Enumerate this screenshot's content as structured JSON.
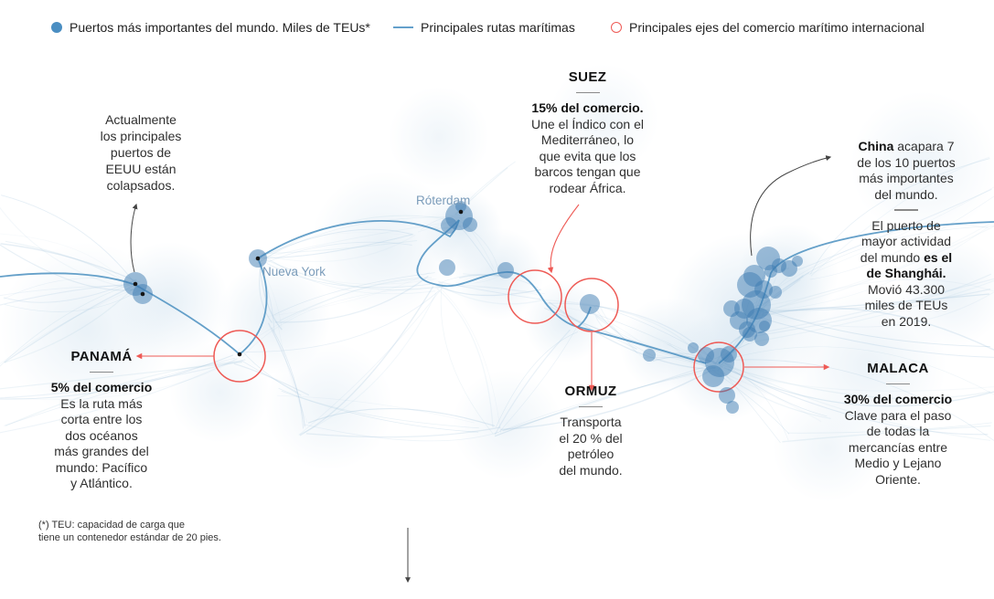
{
  "legend": {
    "items": [
      {
        "icon": "port-dot",
        "label": "Puertos más importantes del mundo. Miles de TEUs*"
      },
      {
        "icon": "route-line",
        "label": "Principales rutas marítimas"
      },
      {
        "icon": "axis-circle",
        "label": "Principales ejes del comercio marítimo internacional"
      }
    ]
  },
  "colors": {
    "port_bubble": "#3e7cb2",
    "route_line": "#4a8fc0",
    "web_line": "#96bcd8",
    "accent_red": "#ee5a55",
    "map_label": "#7b9cba",
    "arrow_black": "#444444"
  },
  "annotations": {
    "usa": {
      "text": "Actualmente\nlos principales\npuertos de\nEEUU están\ncolapsados."
    },
    "suez": {
      "title": "SUEZ",
      "lead": "15% del comercio.",
      "body": "Une el Índico con el\nMediterráneo, lo\nque evita que los\nbarcos tengan que\nrodear África."
    },
    "china": {
      "bold1": "China",
      "text1": " acapara 7\nde los 10 puertos\nmás importantes\ndel mundo.",
      "text2a": "El puerto de\nmayor actividad\ndel mundo ",
      "bold2": "es el\nde Shanghái.",
      "text2b": "\nMovió 43.300\nmiles de TEUs\nen 2019."
    },
    "panama": {
      "title": "PANAMÁ",
      "lead": "5% del comercio",
      "body": "Es la ruta más\ncorta entre los\ndos océanos\nmás grandes del\nmundo: Pacífico\ny Atlántico."
    },
    "ormuz": {
      "title": "ORMUZ",
      "body": "Transporta\nel 20 % del\npetróleo\ndel mundo."
    },
    "malaca": {
      "title": "MALACA",
      "lead": "30% del comercio",
      "body": "Clave para el paso\nde todas la\nmercancías entre\nMedio y Lejano\nOriente."
    }
  },
  "map_labels": [
    {
      "text": "Róterdam"
    },
    {
      "text": "Nueva York"
    }
  ],
  "footnote": "(*) TEU: capacidad de carga que\ntiene un contenedor estándar de 20 pies.",
  "map": {
    "ports": [
      [
        148,
        311,
        13
      ],
      [
        156,
        322,
        11
      ],
      [
        282,
        283,
        10
      ],
      [
        502,
        237,
        15
      ],
      [
        491,
        247,
        9
      ],
      [
        514,
        246,
        8
      ],
      [
        504,
        226,
        6
      ],
      [
        489,
        293,
        9
      ],
      [
        553,
        296,
        9
      ],
      [
        645,
        333,
        11
      ],
      [
        710,
        389,
        7
      ],
      [
        758,
        381,
        6
      ],
      [
        772,
        389,
        9
      ],
      [
        787,
        397,
        16
      ],
      [
        780,
        412,
        12
      ],
      [
        797,
        388,
        9
      ],
      [
        795,
        433,
        9
      ],
      [
        801,
        446,
        7
      ],
      [
        820,
        366,
        8
      ],
      [
        836,
        357,
        6
      ],
      [
        840,
        283,
        13
      ],
      [
        852,
        291,
        8
      ],
      [
        825,
        302,
        12
      ],
      [
        843,
        297,
        7
      ],
      [
        820,
        312,
        14
      ],
      [
        835,
        317,
        10
      ],
      [
        848,
        320,
        7
      ],
      [
        827,
        334,
        16
      ],
      [
        814,
        338,
        11
      ],
      [
        800,
        338,
        9
      ],
      [
        808,
        351,
        10
      ],
      [
        830,
        351,
        14
      ],
      [
        817,
        361,
        9
      ],
      [
        833,
        371,
        8
      ],
      [
        863,
        294,
        9
      ],
      [
        872,
        286,
        6
      ]
    ],
    "port_dots": [
      [
        148,
        311
      ],
      [
        156,
        322
      ],
      [
        282,
        283
      ],
      [
        504,
        232
      ],
      [
        262,
        388
      ]
    ],
    "chokepoints": [
      [
        262,
        390,
        28
      ],
      [
        585,
        325,
        29
      ],
      [
        647,
        334,
        29
      ],
      [
        786,
        402,
        27
      ]
    ],
    "routes": [
      "M0,303 C60,296 112,299 148,312",
      "M148,312 C185,333 228,358 262,388",
      "M262,388 C294,362 299,322 282,283",
      "M282,283 C362,232 450,234 492,259 C498,252 500,247 502,241",
      "M502,241 C481,262 463,272 458,289 C452,302 463,309 479,312 C502,318 521,301 553,298 C571,297 581,309 590,322",
      "M590,322 C601,341 618,355 632,358 C690,373 734,387 772,398",
      "M632,358 C640,352 644,343 646,336",
      "M786,398 C806,382 820,362 828,344 C834,329 839,314 843,299 C858,272 950,248 1087,243"
    ],
    "black_arrows": [
      "M147,298 C141,276 142,246 149,224",
      "M822,280 C816,235 830,205 860,190 C880,180 895,175 908,172",
      "M446,578 L446,637"
    ],
    "red_arrows": [
      "M234,390 L150,390",
      "M633,224 C608,256 599,278 603,298",
      "M647,364 L647,427",
      "M814,402 L906,402"
    ],
    "clusters": [
      [
        505,
        252,
        45,
        0.6
      ],
      [
        545,
        300,
        50,
        0.55
      ],
      [
        300,
        348,
        62,
        0.5
      ],
      [
        818,
        345,
        90,
        0.65
      ],
      [
        790,
        402,
        60,
        0.6
      ],
      [
        730,
        378,
        52,
        0.5
      ],
      [
        420,
        268,
        80,
        0.45
      ],
      [
        185,
        330,
        65,
        0.5
      ],
      [
        862,
        300,
        55,
        0.55
      ],
      [
        618,
        352,
        45,
        0.5
      ],
      [
        95,
        360,
        95,
        0.45
      ],
      [
        950,
        400,
        85,
        0.4
      ],
      [
        360,
        445,
        70,
        0.35
      ],
      [
        555,
        465,
        60,
        0.35
      ],
      [
        1010,
        180,
        80,
        0.35
      ],
      [
        660,
        130,
        60,
        0.3
      ],
      [
        905,
        490,
        60,
        0.3
      ],
      [
        240,
        430,
        55,
        0.35
      ],
      [
        480,
        150,
        55,
        0.3
      ],
      [
        1040,
        320,
        60,
        0.4
      ]
    ],
    "web_links": [
      [
        150,
        312,
        0,
        260,
        4
      ],
      [
        150,
        312,
        0,
        330,
        5
      ],
      [
        152,
        315,
        0,
        400,
        4
      ],
      [
        262,
        390,
        0,
        430,
        4
      ],
      [
        262,
        390,
        0,
        470,
        3
      ],
      [
        150,
        312,
        0,
        220,
        2
      ],
      [
        830,
        340,
        1087,
        250,
        5
      ],
      [
        832,
        342,
        1087,
        320,
        4
      ],
      [
        790,
        400,
        1087,
        430,
        4
      ],
      [
        880,
        300,
        1087,
        210,
        3
      ],
      [
        790,
        402,
        1087,
        480,
        3
      ],
      [
        833,
        345,
        1087,
        385,
        3
      ],
      [
        880,
        300,
        1087,
        170,
        2
      ],
      [
        282,
        283,
        455,
        262,
        6
      ],
      [
        285,
        285,
        478,
        312,
        4
      ],
      [
        300,
        350,
        470,
        300,
        4
      ],
      [
        262,
        390,
        478,
        312,
        3
      ],
      [
        330,
        470,
        480,
        315,
        3
      ],
      [
        284,
        284,
        502,
        241,
        3
      ],
      [
        310,
        430,
        520,
        468,
        3
      ],
      [
        300,
        355,
        330,
        465,
        3
      ],
      [
        502,
        241,
        545,
        300,
        3
      ],
      [
        455,
        250,
        502,
        241,
        3
      ],
      [
        502,
        241,
        560,
        180,
        2
      ],
      [
        478,
        312,
        590,
        322,
        6
      ],
      [
        500,
        305,
        553,
        298,
        3
      ],
      [
        600,
        335,
        778,
        398,
        6
      ],
      [
        648,
        340,
        780,
        398,
        4
      ],
      [
        545,
        470,
        628,
        358,
        3
      ],
      [
        545,
        472,
        782,
        402,
        4
      ],
      [
        700,
        383,
        650,
        340,
        3
      ],
      [
        710,
        390,
        780,
        398,
        3
      ],
      [
        480,
        315,
        545,
        475,
        3
      ],
      [
        332,
        470,
        543,
        473,
        3
      ],
      [
        786,
        400,
        830,
        340,
        6
      ],
      [
        786,
        400,
        816,
        370,
        4
      ],
      [
        816,
        370,
        843,
        300,
        5
      ],
      [
        830,
        340,
        878,
        300,
        5
      ],
      [
        843,
        300,
        863,
        294,
        3
      ],
      [
        786,
        402,
        858,
        478,
        3
      ],
      [
        788,
        404,
        902,
        462,
        3
      ],
      [
        730,
        380,
        786,
        398,
        4
      ],
      [
        712,
        390,
        650,
        338,
        3
      ],
      [
        816,
        372,
        1087,
        300,
        3
      ],
      [
        858,
        480,
        1087,
        468,
        2
      ],
      [
        262,
        392,
        332,
        432,
        3
      ],
      [
        282,
        285,
        302,
        360,
        4
      ]
    ]
  }
}
